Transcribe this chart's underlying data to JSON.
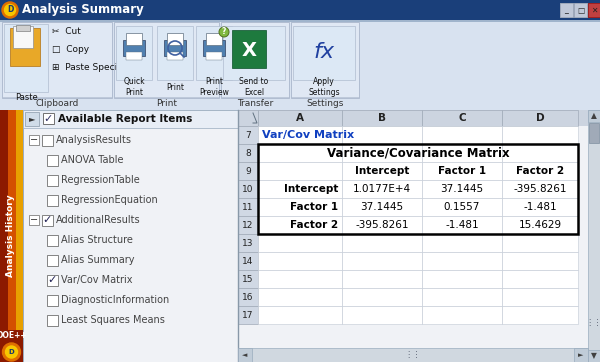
{
  "title_bar": "Analysis Summary",
  "panel_title": "Available Report Items",
  "var_cov_label": "Var/Cov Matrix",
  "matrix_title": "Variance/Covariance Matrix",
  "col_headers": [
    "Intercept",
    "Factor 1",
    "Factor 2"
  ],
  "row_headers": [
    "Intercept",
    "Factor 1",
    "Factor 2"
  ],
  "matrix_data": [
    [
      "1.0177E+4",
      "37.1445",
      "-395.8261"
    ],
    [
      "37.1445",
      "0.1557",
      "-1.481"
    ],
    [
      "-395.8261",
      "-1.481",
      "15.4629"
    ]
  ],
  "col_letters": [
    "A",
    "B",
    "C",
    "D"
  ],
  "row_numbers": [
    7,
    8,
    9,
    10,
    11,
    12,
    13,
    14,
    15,
    16,
    17
  ],
  "title_bg": "#1a3a6b",
  "title_fg": "#ffffff",
  "ribbon_bg": "#dde8f3",
  "ribbon_section_bg": "#e8eef8",
  "ribbon_section_border": "#b0bcd0",
  "col_header_bg": "#d0d8e8",
  "row_num_bg": "#d8dfe8",
  "spreadsheet_bg": "#ffffff",
  "cell_border": "#c0c8d0",
  "tree_panel_bg": "#f2f4f8",
  "sidebar_dark": "#8c1a00",
  "sidebar_mid": "#c84800",
  "sidebar_gold": "#e8a000",
  "sidebar_light": "#f8c800",
  "doe_circle_outer": "#e07000",
  "doe_circle_inner": "#f8c800"
}
